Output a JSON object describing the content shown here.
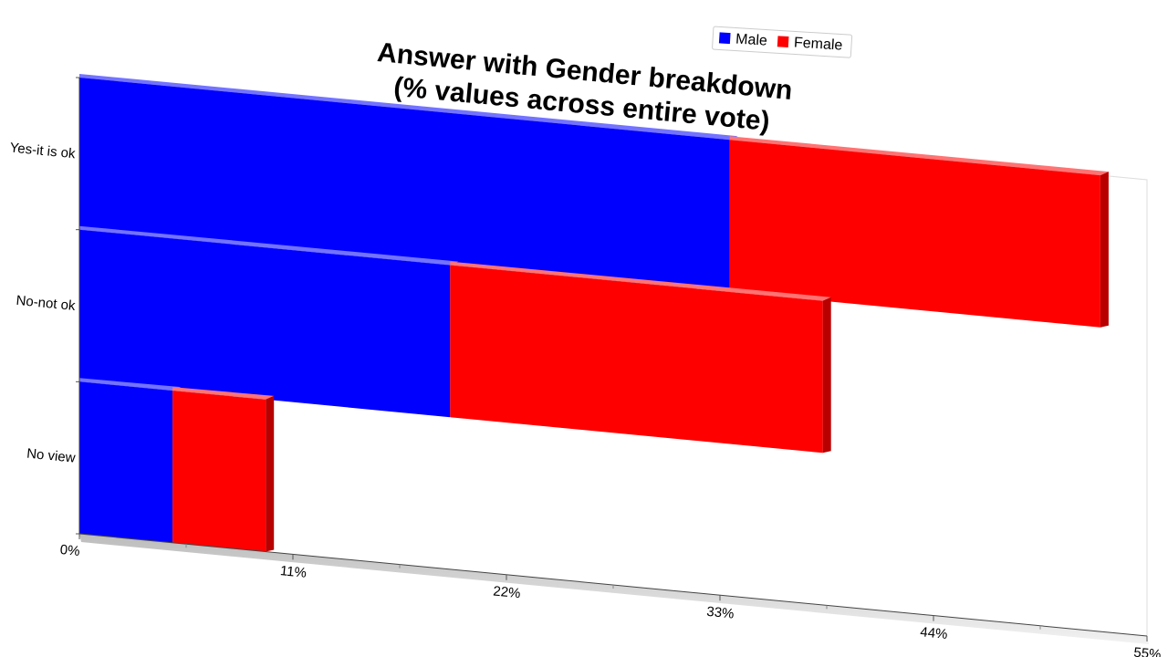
{
  "chart_data": {
    "type": "bar",
    "orientation": "horizontal",
    "stacked": true,
    "three_d": true,
    "title": "Answer with Gender breakdown\n(% values across entire vote)",
    "title_lines": [
      "Answer with Gender breakdown",
      "(% values across entire vote)"
    ],
    "categories": [
      "Yes-it is ok",
      "No-not ok",
      "No view"
    ],
    "series": [
      {
        "name": "Male",
        "color": "#0000ff",
        "values": [
          33.5,
          19.1,
          4.8
        ]
      },
      {
        "name": "Female",
        "color": "#ff0000",
        "values": [
          19.1,
          19.2,
          4.8
        ]
      }
    ],
    "xlim": [
      0,
      55
    ],
    "x_ticks": [
      0,
      11,
      22,
      33,
      44,
      55
    ],
    "x_tick_labels": [
      "0%",
      "11%",
      "22%",
      "33%",
      "44%",
      "55%"
    ],
    "legend": {
      "position": "top-right",
      "entries": [
        "Male",
        "Female"
      ]
    },
    "grid": false
  }
}
